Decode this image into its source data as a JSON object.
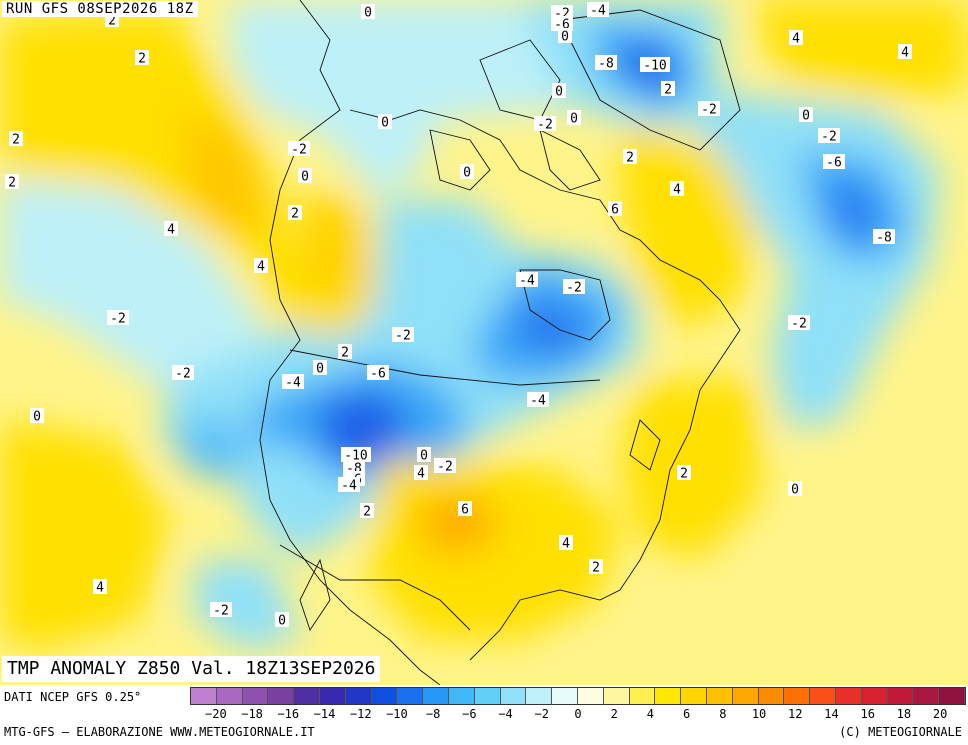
{
  "header": {
    "run_title": "RUN GFS 08SEP2026 18Z"
  },
  "map": {
    "title": "TMP ANOMALY Z850 Val. 18Z13SEP2026",
    "contour_labels": [
      {
        "text": "2"
      },
      {
        "text": "0"
      },
      {
        "text": "-2"
      },
      {
        "text": "-4"
      },
      {
        "text": "-6"
      },
      {
        "text": "0"
      },
      {
        "text": "-8"
      },
      {
        "text": "-10"
      },
      {
        "text": "2"
      },
      {
        "text": "4"
      },
      {
        "text": "4"
      },
      {
        "text": "2"
      },
      {
        "text": "0"
      },
      {
        "text": "0"
      },
      {
        "text": "-2"
      },
      {
        "text": "0"
      },
      {
        "text": "2"
      },
      {
        "text": "0"
      },
      {
        "text": "-2"
      },
      {
        "text": "-2"
      },
      {
        "text": "2"
      },
      {
        "text": "0"
      },
      {
        "text": "-2"
      },
      {
        "text": "-6"
      },
      {
        "text": "4"
      },
      {
        "text": "2"
      },
      {
        "text": "0"
      },
      {
        "text": "-8"
      },
      {
        "text": "2"
      },
      {
        "text": "6"
      },
      {
        "text": "4"
      },
      {
        "text": "4"
      },
      {
        "text": "-2"
      },
      {
        "text": "-4"
      },
      {
        "text": "-2"
      },
      {
        "text": "-2"
      },
      {
        "text": "-2"
      },
      {
        "text": "2"
      },
      {
        "text": "-2"
      },
      {
        "text": "-4"
      },
      {
        "text": "0"
      },
      {
        "text": "-6"
      },
      {
        "text": "-4"
      },
      {
        "text": "0"
      },
      {
        "text": "-10"
      },
      {
        "text": "-8"
      },
      {
        "text": "-6"
      },
      {
        "text": "-4"
      },
      {
        "text": "0"
      },
      {
        "text": "4"
      },
      {
        "text": "-2"
      },
      {
        "text": "2"
      },
      {
        "text": "0"
      },
      {
        "text": "2"
      },
      {
        "text": "6"
      },
      {
        "text": "4"
      },
      {
        "text": "2"
      },
      {
        "text": "4"
      },
      {
        "text": "-2"
      },
      {
        "text": "0"
      }
    ]
  },
  "footer": {
    "source": "DATI NCEP GFS 0.25°",
    "credit_left": "MTG-GFS – ELABORAZIONE WWW.METEOGIORNALE.IT",
    "credit_right": "(C) METEOGIORNALE"
  },
  "legend": {
    "colors": [
      "#c080d0",
      "#a868c0",
      "#9050b0",
      "#7840a0",
      "#5030a0",
      "#3828b0",
      "#2038c8",
      "#1050e0",
      "#1870f0",
      "#2898f8",
      "#40b8f8",
      "#60d0f8",
      "#90e0f8",
      "#c0f0f8",
      "#e8fbfb",
      "#fffde0",
      "#fff7a0",
      "#fff050",
      "#ffe800",
      "#ffd400",
      "#ffc000",
      "#ffa800",
      "#ff8c00",
      "#ff7000",
      "#f85018",
      "#e83028",
      "#d82030",
      "#c01838",
      "#a81840",
      "#901040"
    ],
    "ticks": [
      "−20",
      "−18",
      "−16",
      "−14",
      "−12",
      "−10",
      "−8",
      "−6",
      "−4",
      "−2",
      "0",
      "2",
      "4",
      "6",
      "8",
      "10",
      "12",
      "14",
      "16",
      "18",
      "20"
    ]
  }
}
